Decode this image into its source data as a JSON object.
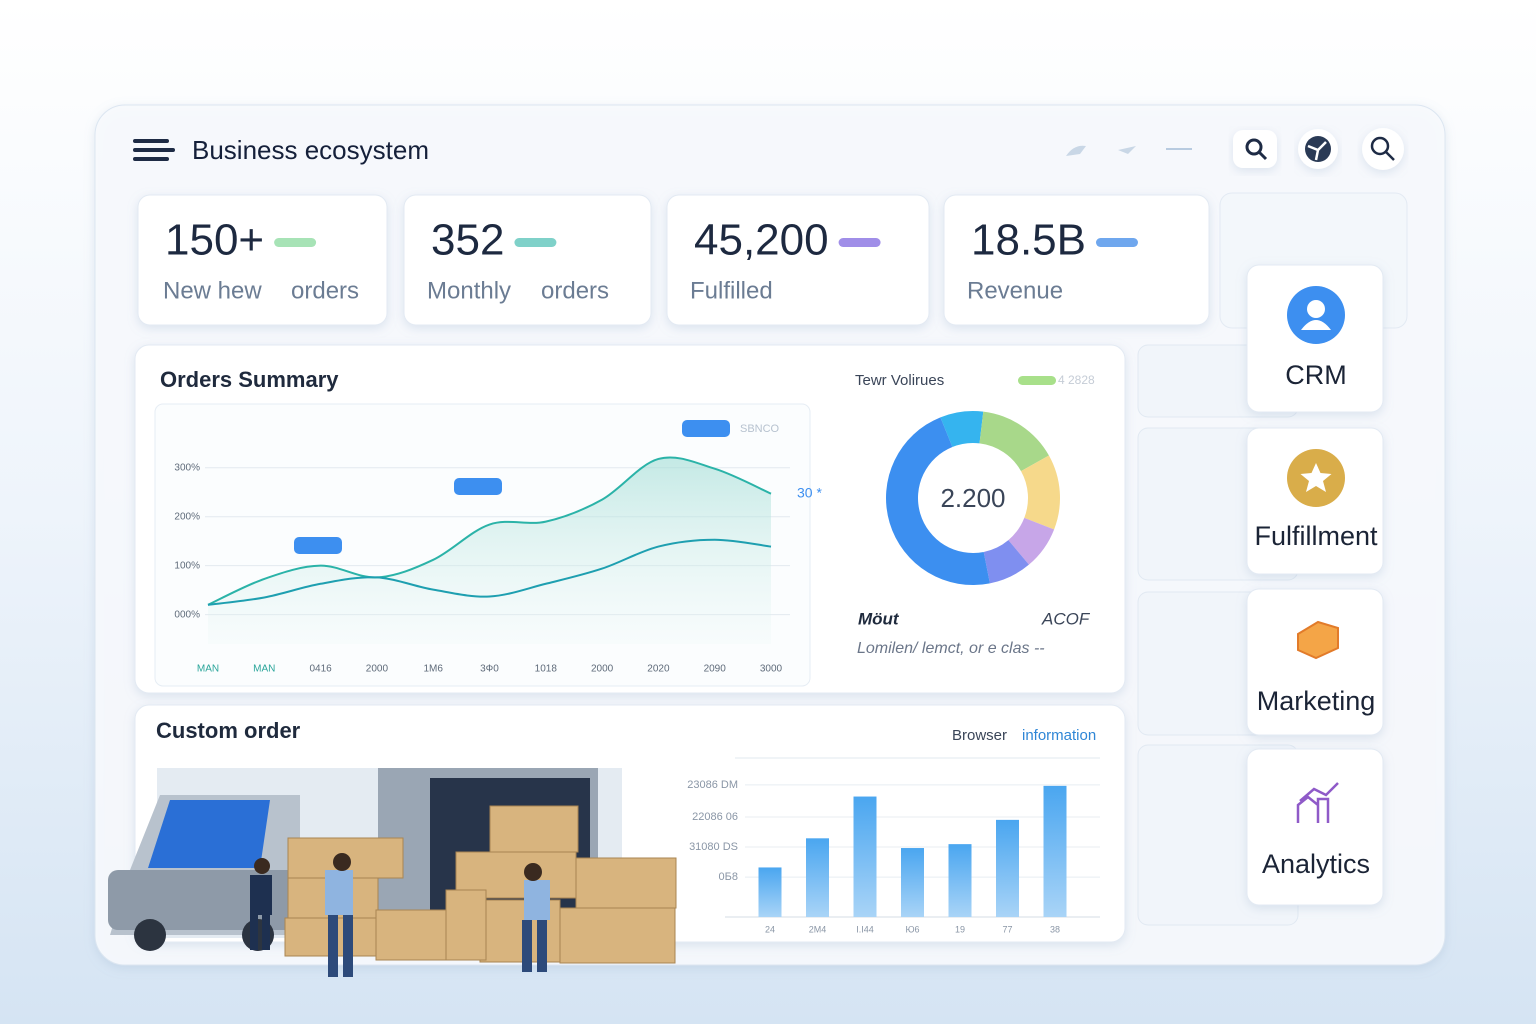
{
  "header": {
    "title": "Business ecosystem"
  },
  "stats": [
    {
      "value": "150+",
      "label": [
        "New hew",
        "orders"
      ]
    },
    {
      "value": "352",
      "label": [
        "Monthly",
        "orders"
      ]
    },
    {
      "value": "45,200",
      "label": [
        "Fulfilled"
      ]
    },
    {
      "value": "18.5B",
      "label": [
        "Revenue"
      ]
    }
  ],
  "orders_summary": {
    "title": "Orders Summary"
  },
  "custom_order": {
    "title": "Custom order",
    "link": [
      "Browser",
      "information"
    ]
  },
  "tiles": [
    "CRM",
    "Fulfillment",
    "Marketing",
    "Analytics"
  ],
  "chart_data": [
    {
      "type": "line",
      "categories": [
        "MAN",
        "MAN",
        "0416",
        "2000",
        "1M6",
        "3Ф0",
        "1018",
        "2000",
        "2020",
        "2090",
        "3000"
      ],
      "series": [
        {
          "color": "#2bb3a8",
          "values": [
            20,
            73,
            100,
            76,
            112,
            184,
            190,
            235,
            318,
            298,
            247
          ]
        },
        {
          "color": "#1e9fb0",
          "values": [
            20,
            35,
            63,
            76,
            51,
            37,
            63,
            94,
            139,
            153,
            139
          ]
        }
      ],
      "ylim": [
        -60,
        420
      ],
      "yticks": [
        {
          "value": 0,
          "label": "000%"
        },
        {
          "value": 100,
          "label": "100%"
        },
        {
          "value": 200,
          "label": "200%"
        },
        {
          "value": 300,
          "label": "300%"
        }
      ],
      "grid": true,
      "annotations": [
        "SBNCO",
        "30 *"
      ]
    },
    {
      "type": "pie",
      "title": "Tewr Volirues",
      "legend_text": "4 2828",
      "center_label": "2.200",
      "values": [
        8,
        15,
        14,
        8,
        8,
        47
      ],
      "colors": [
        "#35b4ef",
        "#a8d88a",
        "#f6d98b",
        "#c7a6e8",
        "#7f8ff0",
        "#3c8ff0"
      ],
      "notes": [
        "Möut",
        "ACOF",
        "Lomilen/ lemct, or e clas --"
      ]
    },
    {
      "type": "bar",
      "categories": [
        "24",
        "2M4",
        "I.I44",
        "Ю6",
        "19",
        "77",
        "38"
      ],
      "values": [
        51,
        81,
        124,
        71,
        75,
        100,
        135
      ],
      "color": "#6fb7f2",
      "ylim": [
        0,
        140
      ],
      "yticks": [
        {
          "value": 41,
          "label": "0Б8"
        },
        {
          "value": 72,
          "label": "31080 DS"
        },
        {
          "value": 103,
          "label": "22086 06"
        },
        {
          "value": 136,
          "label": "23086 DM"
        }
      ],
      "grid": true
    }
  ]
}
